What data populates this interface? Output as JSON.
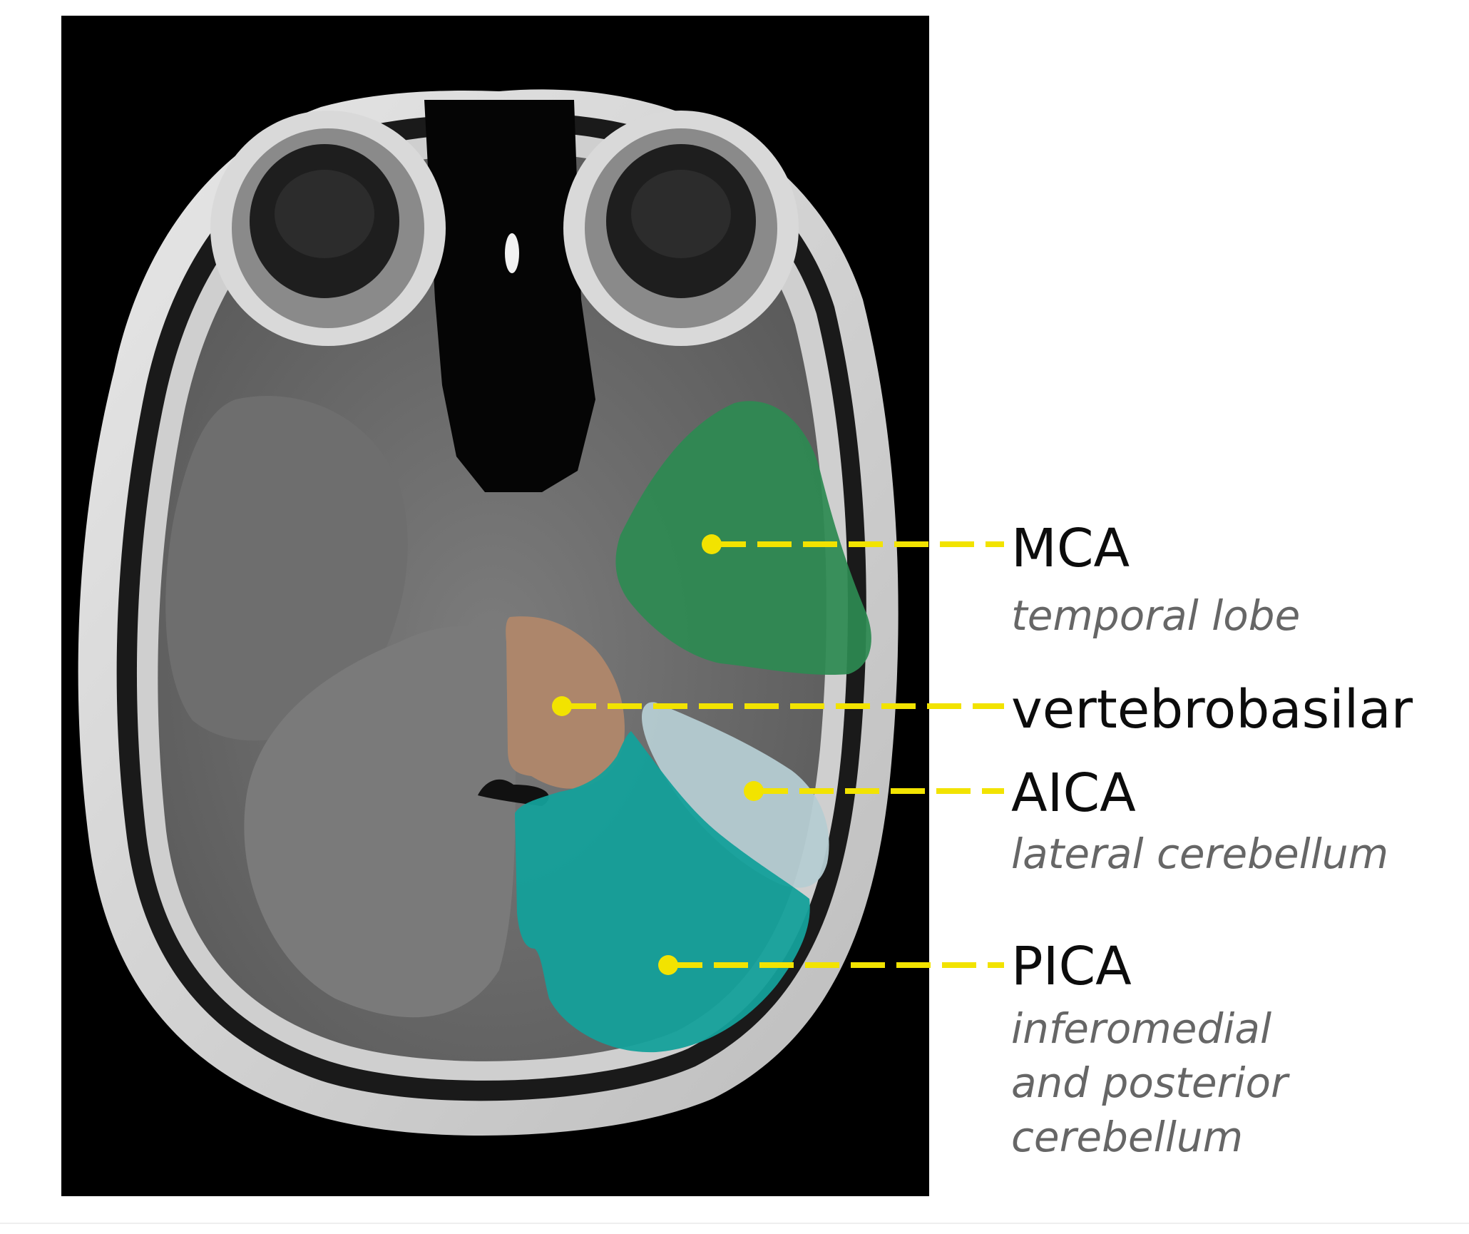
{
  "colors": {
    "mca": "#2d8a52",
    "vertebrobasilar": "#b0876a",
    "aica": "#b5ccd2",
    "pica": "#14a09a",
    "leader": "#f2e300",
    "background": "#000000"
  },
  "regions": [
    {
      "id": "mca",
      "label": "MCA",
      "sublabel": "temporal lobe"
    },
    {
      "id": "vertebrobasilar",
      "label": "vertebrobasilar",
      "sublabel": ""
    },
    {
      "id": "aica",
      "label": "AICA",
      "sublabel": "lateral cerebellum"
    },
    {
      "id": "pica",
      "label": "PICA",
      "sublabel_lines": [
        "inferomedial",
        "and posterior",
        "cerebellum"
      ]
    }
  ]
}
